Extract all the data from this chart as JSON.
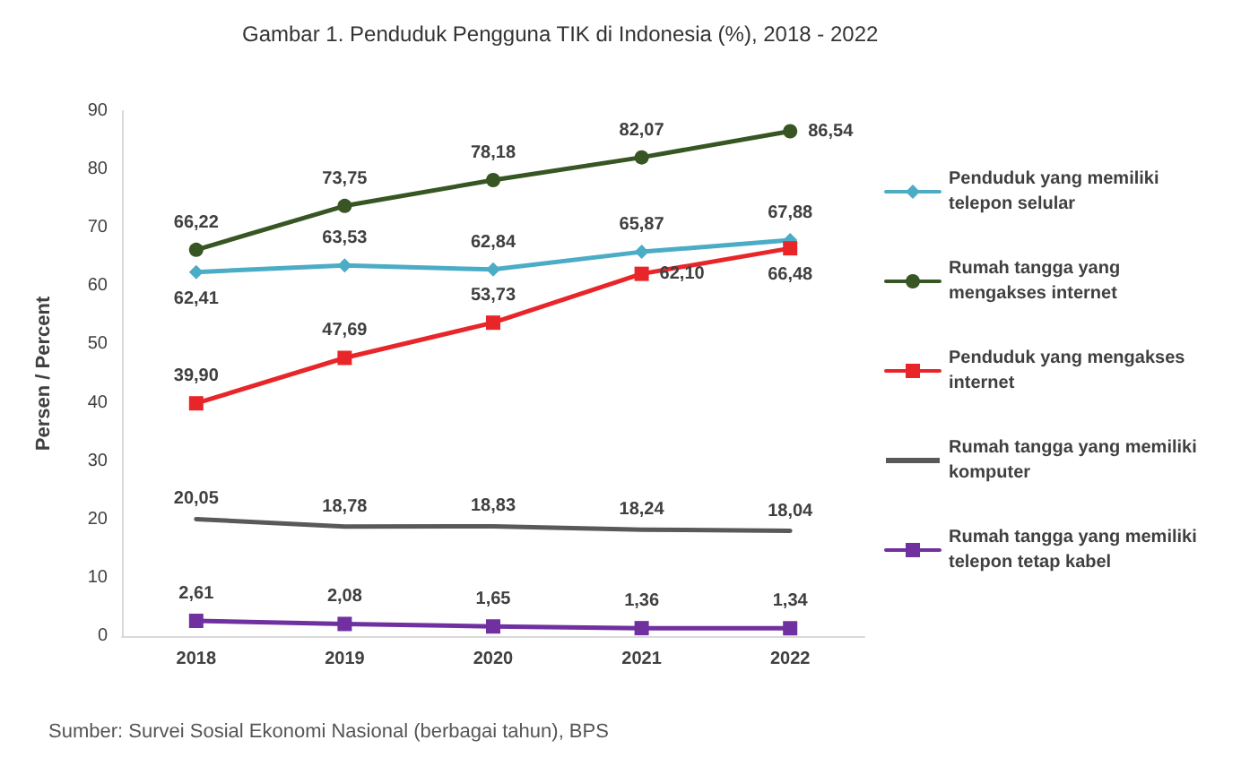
{
  "chart_data": {
    "type": "line",
    "title": "Gambar 1. Penduduk Pengguna TIK di Indonesia (%), 2018 - 2022",
    "ylabel": "Persen / Percent",
    "categories": [
      "2018",
      "2019",
      "2020",
      "2021",
      "2022"
    ],
    "ylim": [
      0,
      90
    ],
    "yticks": [
      0,
      10,
      20,
      30,
      40,
      50,
      60,
      70,
      80,
      90
    ],
    "grid": false,
    "legend": "right",
    "annotations": [
      "Sumber: Survei Sosial Ekonomi Nasional (berbagai tahun), BPS"
    ],
    "series": [
      {
        "name": "Penduduk yang memiliki telepon selular",
        "color": "#4bacc6",
        "marker": "diamond",
        "values": [
          62.41,
          63.53,
          62.84,
          65.87,
          67.88
        ],
        "value_labels": [
          "62,41",
          "63,53",
          "62,84",
          "65,87",
          "67,88"
        ]
      },
      {
        "name": "Rumah tangga yang mengakses internet",
        "color": "#375623",
        "marker": "circle",
        "values": [
          66.22,
          73.75,
          78.18,
          82.07,
          86.54
        ],
        "value_labels": [
          "66,22",
          "73,75",
          "78,18",
          "82,07",
          "86,54"
        ]
      },
      {
        "name": "Penduduk yang mengakses internet",
        "color": "#e8262a",
        "marker": "square",
        "values": [
          39.9,
          47.69,
          53.73,
          62.1,
          66.48
        ],
        "value_labels": [
          "39,90",
          "47,69",
          "53,73",
          "62,10",
          "66,48"
        ]
      },
      {
        "name": "Rumah tangga yang memiliki komputer",
        "color": "#595959",
        "marker": "none",
        "values": [
          20.05,
          18.78,
          18.83,
          18.24,
          18.04
        ],
        "value_labels": [
          "20,05",
          "18,78",
          "18,83",
          "18,24",
          "18,04"
        ]
      },
      {
        "name": "Rumah tangga yang memiliki telepon tetap kabel",
        "color": "#7030a0",
        "marker": "square",
        "values": [
          2.61,
          2.08,
          1.65,
          1.36,
          1.34
        ],
        "value_labels": [
          "2,61",
          "2,08",
          "1,65",
          "1,36",
          "1,34"
        ]
      }
    ]
  }
}
